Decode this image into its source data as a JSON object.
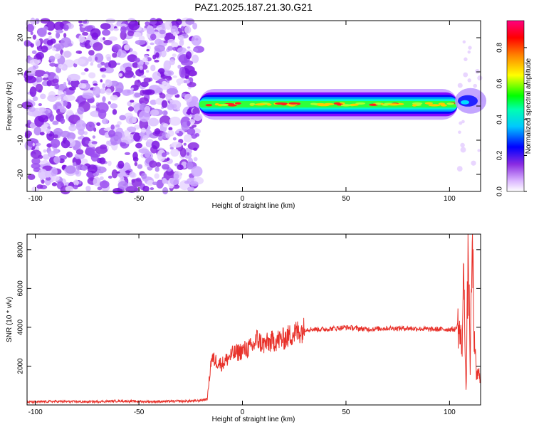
{
  "title": "PAZ1.2025.187.21.30.G21",
  "chart_data": [
    {
      "type": "heatmap",
      "xlabel": "Height of straight line (km)",
      "ylabel": "Frequency (Hz)",
      "xlim": [
        -104,
        115
      ],
      "ylim": [
        -25,
        25
      ],
      "xticks": [
        -100,
        -50,
        0,
        50,
        100
      ],
      "yticks": [
        -20,
        -10,
        0,
        10,
        20
      ],
      "colorbar": {
        "label": "Normalized spectral amplitude",
        "range": [
          0.0,
          0.95
        ],
        "ticks": [
          0.0,
          0.2,
          0.4,
          0.6,
          0.8
        ],
        "colormap": [
          "#ffffff",
          "#cc88ff",
          "#7f00ff",
          "#0000ff",
          "#00ffff",
          "#00ff00",
          "#ffff00",
          "#ff8000",
          "#ff0000",
          "#ff0080"
        ]
      },
      "regions": [
        {
          "x_range": [
            -104,
            -21
          ],
          "f_range": [
            -25,
            25
          ],
          "amplitude": 0.05,
          "pattern": "noise"
        },
        {
          "x_range": [
            -21,
            104
          ],
          "f_center": 0.5,
          "f_halfwidth": 2.5,
          "amplitude": 0.55,
          "pattern": "carrier"
        },
        {
          "x_range": [
            104,
            115
          ],
          "f_center": 1.5,
          "f_halfwidth": 4,
          "amplitude": 0.2,
          "pattern": "spread"
        }
      ]
    },
    {
      "type": "line",
      "xlabel": "Height of straight line (km)",
      "ylabel": "SNR (10 * v/v)",
      "xlim": [
        -104,
        115
      ],
      "ylim": [
        0,
        8800
      ],
      "xticks": [
        -100,
        -50,
        0,
        50,
        100
      ],
      "yticks": [
        2000,
        4000,
        6000,
        8000
      ],
      "color": "#e8312a",
      "x": [
        -104,
        -90,
        -75,
        -60,
        -45,
        -30,
        -22,
        -17,
        -15,
        -10,
        -5,
        0,
        5,
        7,
        10,
        15,
        20,
        25,
        30,
        40,
        50,
        60,
        70,
        80,
        90,
        100,
        103,
        104,
        106,
        107,
        108,
        109,
        110,
        111,
        112,
        113,
        115
      ],
      "y": [
        150,
        180,
        160,
        200,
        170,
        190,
        210,
        300,
        2400,
        2100,
        2600,
        2800,
        3000,
        3400,
        3100,
        3300,
        3400,
        3700,
        3900,
        3900,
        4000,
        3900,
        3950,
        3950,
        3900,
        3900,
        3900,
        4200,
        3000,
        7000,
        400,
        8200,
        2000,
        8700,
        3000,
        1500,
        1600
      ]
    }
  ]
}
